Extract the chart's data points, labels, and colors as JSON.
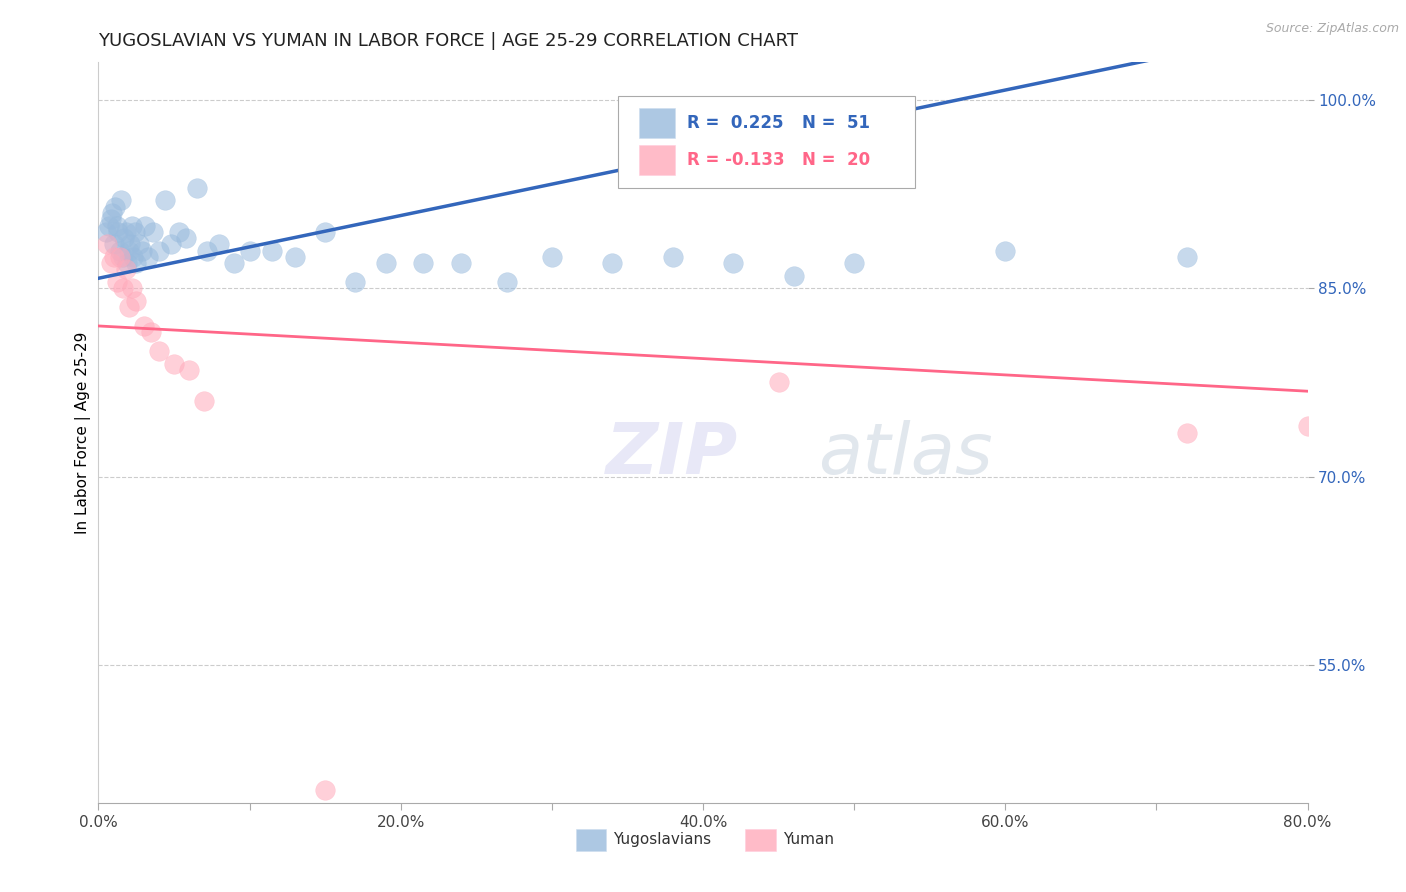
{
  "title": "YUGOSLAVIAN VS YUMAN IN LABOR FORCE | AGE 25-29 CORRELATION CHART",
  "source": "Source: ZipAtlas.com",
  "ylabel": "In Labor Force | Age 25-29",
  "xlim": [
    0.0,
    0.8
  ],
  "ylim": [
    0.44,
    1.03
  ],
  "xticks": [
    0.0,
    0.1,
    0.2,
    0.3,
    0.4,
    0.5,
    0.6,
    0.7,
    0.8
  ],
  "xticklabels": [
    "0.0%",
    "",
    "20.0%",
    "",
    "40.0%",
    "",
    "60.0%",
    "",
    "80.0%"
  ],
  "yticks": [
    0.55,
    0.7,
    0.85,
    1.0
  ],
  "yticklabels": [
    "55.0%",
    "70.0%",
    "85.0%",
    "100.0%"
  ],
  "blue_color": "#99BBDD",
  "pink_color": "#FFAABB",
  "blue_line_color": "#3366BB",
  "pink_line_color": "#FF6688",
  "watermark_zip": "ZIP",
  "watermark_atlas": "atlas",
  "blue_x": [
    0.005,
    0.007,
    0.008,
    0.009,
    0.01,
    0.011,
    0.012,
    0.013,
    0.014,
    0.015,
    0.016,
    0.017,
    0.018,
    0.019,
    0.02,
    0.021,
    0.022,
    0.023,
    0.024,
    0.025,
    0.027,
    0.029,
    0.031,
    0.033,
    0.036,
    0.04,
    0.044,
    0.048,
    0.053,
    0.058,
    0.065,
    0.072,
    0.08,
    0.09,
    0.1,
    0.115,
    0.13,
    0.15,
    0.17,
    0.19,
    0.215,
    0.24,
    0.27,
    0.3,
    0.34,
    0.38,
    0.42,
    0.46,
    0.5,
    0.6,
    0.72
  ],
  "blue_y": [
    0.895,
    0.9,
    0.905,
    0.91,
    0.885,
    0.915,
    0.9,
    0.895,
    0.88,
    0.92,
    0.875,
    0.89,
    0.895,
    0.87,
    0.88,
    0.885,
    0.9,
    0.875,
    0.895,
    0.87,
    0.885,
    0.88,
    0.9,
    0.875,
    0.895,
    0.88,
    0.92,
    0.885,
    0.895,
    0.89,
    0.93,
    0.88,
    0.885,
    0.87,
    0.88,
    0.88,
    0.875,
    0.895,
    0.855,
    0.87,
    0.87,
    0.87,
    0.855,
    0.875,
    0.87,
    0.875,
    0.87,
    0.86,
    0.87,
    0.88,
    0.875
  ],
  "pink_x": [
    0.006,
    0.008,
    0.01,
    0.012,
    0.014,
    0.016,
    0.018,
    0.02,
    0.022,
    0.025,
    0.03,
    0.035,
    0.04,
    0.05,
    0.06,
    0.07,
    0.15,
    0.45,
    0.72,
    0.8
  ],
  "pink_y": [
    0.885,
    0.87,
    0.875,
    0.855,
    0.875,
    0.85,
    0.865,
    0.835,
    0.85,
    0.84,
    0.82,
    0.815,
    0.8,
    0.79,
    0.785,
    0.76,
    0.45,
    0.775,
    0.735,
    0.74
  ],
  "blue_intercept": 0.858,
  "blue_slope": 0.25,
  "pink_intercept": 0.82,
  "pink_slope": -0.065
}
